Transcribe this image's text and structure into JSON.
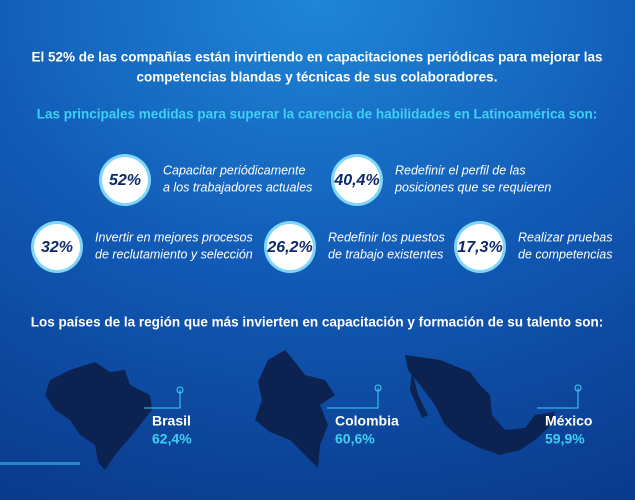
{
  "intro": {
    "text_line1": "El 52% de las compañías están invirtiendo en capacitaciones periódicas para mejorar las",
    "text_line2": "competencias blandas y técnicas de sus colaboradores.",
    "subtitle": "Las principales medidas para superar la carencia de habilidades en Latinoamérica son:"
  },
  "measures": [
    {
      "value": "52%",
      "line1": "Capacitar periódicamente",
      "line2": "a los trabajadores actuales"
    },
    {
      "value": "40,4%",
      "line1": "Redefinir el perfil de las",
      "line2": "posiciones que se requieren"
    },
    {
      "value": "32%",
      "line1": "Invertir en mejores procesos",
      "line2": "de reclutamiento y selección"
    },
    {
      "value": "26,2%",
      "line1": "Redefinir los puestos",
      "line2": "de trabajo existentes"
    },
    {
      "value": "17,3%",
      "line1": "Realizar pruebas",
      "line2": "de competencias"
    }
  ],
  "countries_heading": "Los países de la región que más invierten en capacitación y formación de su talento son:",
  "countries": [
    {
      "name": "Brasil",
      "value": "62,4%"
    },
    {
      "name": "Colombia",
      "value": "60,6%"
    },
    {
      "name": "México",
      "value": "59,9%"
    }
  ]
}
